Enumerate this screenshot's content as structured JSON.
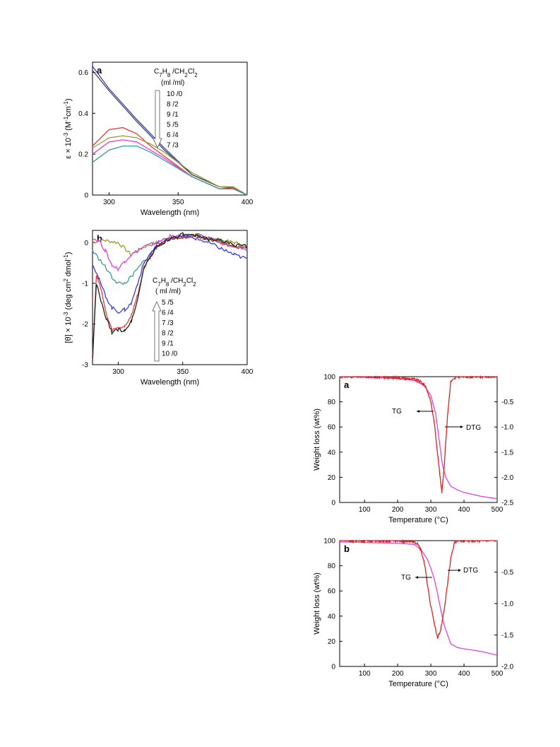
{
  "chart_data": [
    {
      "id": "uv",
      "type": "line",
      "panel_label": "a",
      "xlabel": "Wavelength (nm)",
      "ylabel": "ε × 10⁻³ (M⁻¹cm⁻¹)",
      "xlim": [
        288,
        400
      ],
      "ylim": [
        0,
        0.65
      ],
      "xticks": [
        300,
        350,
        400
      ],
      "yticks": [
        0,
        0.2,
        0.4,
        0.6
      ],
      "legend": {
        "title": "C₇H₈ /CH₂Cl₂",
        "subtitle": "(ml /ml)",
        "entries": [
          "10 /0",
          "8 /2",
          "9 /1",
          "5 /5",
          "6 /4",
          "7 /3"
        ]
      },
      "series": [
        {
          "color": "#3a3ad0",
          "x": [
            288,
            300,
            320,
            340,
            360,
            380,
            390,
            400
          ],
          "y": [
            0.63,
            0.52,
            0.37,
            0.23,
            0.1,
            0.04,
            0.04,
            0.0
          ]
        },
        {
          "color": "#444444",
          "x": [
            288,
            300,
            320,
            340,
            360,
            380,
            390,
            400
          ],
          "y": [
            0.61,
            0.51,
            0.36,
            0.22,
            0.1,
            0.04,
            0.035,
            0.0
          ]
        },
        {
          "color": "#e23c3c",
          "x": [
            288,
            300,
            310,
            320,
            330,
            340,
            360,
            380,
            390,
            400
          ],
          "y": [
            0.24,
            0.32,
            0.33,
            0.3,
            0.24,
            0.19,
            0.09,
            0.03,
            0.035,
            0.0
          ]
        },
        {
          "color": "#9a9a30",
          "x": [
            288,
            300,
            310,
            320,
            330,
            340,
            360,
            380,
            390,
            400
          ],
          "y": [
            0.23,
            0.28,
            0.29,
            0.28,
            0.25,
            0.21,
            0.11,
            0.04,
            0.04,
            0.0
          ]
        },
        {
          "color": "#e040e0",
          "x": [
            288,
            300,
            310,
            320,
            330,
            340,
            360,
            380,
            390,
            400
          ],
          "y": [
            0.2,
            0.26,
            0.27,
            0.26,
            0.22,
            0.18,
            0.09,
            0.03,
            0.03,
            0.0
          ]
        },
        {
          "color": "#3a9a9a",
          "x": [
            288,
            300,
            310,
            320,
            330,
            340,
            360,
            380,
            390,
            400
          ],
          "y": [
            0.16,
            0.22,
            0.24,
            0.24,
            0.21,
            0.17,
            0.09,
            0.03,
            0.03,
            0.0
          ]
        }
      ]
    },
    {
      "id": "cd",
      "type": "line",
      "panel_label": "b",
      "xlabel": "Wavelength (nm)",
      "ylabel": "[θ] × 10⁻³ (deg cm² dmol⁻¹)",
      "xlim": [
        280,
        400
      ],
      "ylim": [
        -3,
        0.3
      ],
      "xticks": [
        300,
        350,
        400
      ],
      "yticks": [
        0,
        -1,
        -2,
        -3
      ],
      "legend": {
        "title": "C₇H₈ /CH₂Cl₂",
        "subtitle": "( ml /ml)",
        "entries": [
          "5 /5",
          "6 /4",
          "7 /3",
          "8 /2",
          "9 /1",
          "10 /0"
        ]
      },
      "series": [
        {
          "color": "#9a9a30",
          "x": [
            280,
            285,
            290,
            300,
            310,
            320,
            330,
            340,
            350,
            360,
            370,
            380,
            390,
            400
          ],
          "y": [
            0.0,
            0.05,
            0.05,
            0.0,
            -0.3,
            -0.1,
            0.0,
            0.15,
            0.1,
            0.2,
            0.1,
            0.05,
            0.0,
            -0.1
          ]
        },
        {
          "color": "#e040e0",
          "x": [
            280,
            285,
            290,
            295,
            300,
            305,
            310,
            320,
            330,
            340,
            350,
            360,
            370,
            380,
            390,
            400
          ],
          "y": [
            0.1,
            0.05,
            -0.2,
            -0.55,
            -0.65,
            -0.45,
            -0.3,
            -0.1,
            0.0,
            0.15,
            0.15,
            0.2,
            0.1,
            0.0,
            -0.1,
            -0.2
          ]
        },
        {
          "color": "#3a9a9a",
          "x": [
            280,
            285,
            290,
            295,
            300,
            305,
            310,
            320,
            330,
            340,
            350,
            360,
            370,
            380,
            390,
            400
          ],
          "y": [
            -0.2,
            -0.4,
            -0.6,
            -0.85,
            -1.0,
            -1.0,
            -0.85,
            -0.45,
            -0.1,
            0.1,
            0.15,
            0.2,
            0.1,
            0.0,
            -0.1,
            -0.15
          ]
        },
        {
          "color": "#3a3ad0",
          "x": [
            280,
            285,
            290,
            295,
            300,
            305,
            310,
            315,
            320,
            330,
            340,
            350,
            360,
            370,
            380,
            390,
            400
          ],
          "y": [
            -0.5,
            -0.9,
            -1.3,
            -1.6,
            -1.7,
            -1.65,
            -1.5,
            -1.0,
            -0.5,
            -0.05,
            0.1,
            0.15,
            0.1,
            0.0,
            -0.15,
            -0.3,
            -0.4
          ]
        },
        {
          "color": "#e23c3c",
          "x": [
            280,
            283,
            287,
            291,
            295,
            300,
            305,
            310,
            315,
            320,
            330,
            340,
            350,
            360,
            370,
            380,
            390,
            400
          ],
          "y": [
            -2.8,
            -0.8,
            -1.2,
            -1.8,
            -2.15,
            -2.1,
            -2.05,
            -1.8,
            -1.3,
            -0.6,
            -0.1,
            0.1,
            0.15,
            0.15,
            0.1,
            0.0,
            -0.1,
            -0.15
          ]
        },
        {
          "color": "#222222",
          "x": [
            280,
            283,
            287,
            291,
            295,
            300,
            305,
            310,
            315,
            320,
            330,
            340,
            350,
            360,
            370,
            380,
            390,
            400
          ],
          "y": [
            -2.9,
            -1.0,
            -1.5,
            -1.9,
            -2.2,
            -2.15,
            -2.15,
            -1.95,
            -1.4,
            -0.6,
            -0.1,
            0.1,
            0.2,
            0.15,
            0.1,
            0.05,
            -0.05,
            -0.1
          ]
        }
      ]
    },
    {
      "id": "tga_a",
      "type": "line",
      "panel_label": "a",
      "xlabel": "Temperature (°C)",
      "ylabel": "Weight loss (wt%)",
      "xlim": [
        25,
        500
      ],
      "ylim": [
        0,
        100
      ],
      "y2lim": [
        -2.5,
        0
      ],
      "xticks": [
        100,
        200,
        300,
        400,
        500
      ],
      "yticks": [
        0,
        20,
        40,
        60,
        80,
        100
      ],
      "y2ticks": [
        "-0.5",
        "-1.0",
        "-1.5",
        "-2.0",
        "-2.5"
      ],
      "annotations": {
        "tg": "TG",
        "dtg": "DTG"
      },
      "tg": {
        "color": "#e040e0",
        "x": [
          25,
          100,
          200,
          250,
          280,
          300,
          315,
          325,
          335,
          345,
          360,
          380,
          400,
          450,
          500
        ],
        "y": [
          100,
          99.5,
          98.5,
          97,
          93,
          85,
          70,
          50,
          30,
          20,
          13,
          10,
          8,
          5,
          3
        ]
      },
      "dtg": {
        "color": "#e02020",
        "x": [
          25,
          100,
          200,
          250,
          270,
          285,
          300,
          310,
          320,
          328,
          333,
          340,
          350,
          360,
          380,
          400,
          450,
          500
        ],
        "y2": [
          0,
          0,
          -0.02,
          -0.05,
          -0.1,
          -0.2,
          -0.5,
          -0.9,
          -1.5,
          -2.0,
          -2.3,
          -1.8,
          -0.8,
          -0.1,
          0,
          0,
          0,
          0
        ]
      }
    },
    {
      "id": "tga_b",
      "type": "line",
      "panel_label": "b",
      "xlabel": "Temperature (°C)",
      "ylabel": "Weight loss (wt%)",
      "xlim": [
        25,
        500
      ],
      "ylim": [
        0,
        100
      ],
      "y2lim": [
        -2.0,
        0
      ],
      "xticks": [
        100,
        200,
        300,
        400,
        500
      ],
      "yticks": [
        0,
        20,
        40,
        60,
        80,
        100
      ],
      "y2ticks": [
        "-0.5",
        "-1.0",
        "-1.5",
        "-2.0"
      ],
      "annotations": {
        "tg": "TG",
        "dtg": "DTG"
      },
      "tg": {
        "color": "#e040e0",
        "x": [
          25,
          100,
          200,
          250,
          270,
          290,
          300,
          310,
          320,
          330,
          340,
          360,
          380,
          400,
          450,
          500
        ],
        "y": [
          99,
          98.5,
          98,
          97,
          93,
          85,
          78,
          70,
          58,
          45,
          33,
          18,
          15,
          14,
          12,
          9
        ]
      },
      "dtg": {
        "color": "#e02020",
        "x": [
          25,
          100,
          200,
          250,
          260,
          270,
          280,
          290,
          300,
          310,
          320,
          325,
          330,
          340,
          350,
          360,
          370,
          380,
          400,
          450,
          500
        ],
        "y2": [
          0,
          0,
          0,
          -0.02,
          -0.05,
          -0.15,
          -0.35,
          -0.7,
          -1.05,
          -1.3,
          -1.55,
          -1.5,
          -1.4,
          -1.1,
          -0.7,
          -0.3,
          -0.05,
          0,
          0,
          0,
          0
        ]
      }
    }
  ]
}
